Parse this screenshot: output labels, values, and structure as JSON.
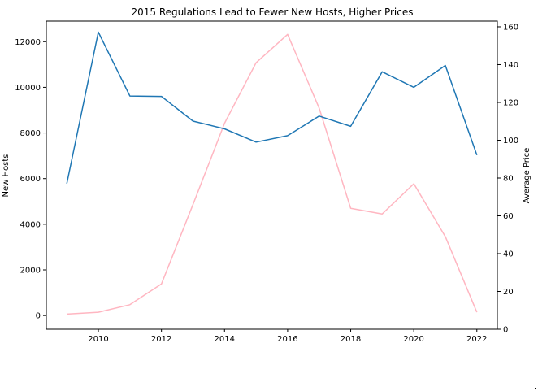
{
  "chart_data": {
    "type": "line",
    "title": "2015 Regulations Lead to Fewer New Hosts, Higher Prices",
    "x": [
      2009,
      2010,
      2011,
      2012,
      2013,
      2014,
      2015,
      2016,
      2017,
      2018,
      2019,
      2020,
      2021,
      2022
    ],
    "x_ticks": [
      "2010",
      "2012",
      "2014",
      "2016",
      "2018",
      "2020",
      "2022"
    ],
    "xlim": [
      2008.35,
      2022.65
    ],
    "left_axis": {
      "label": "New Hosts",
      "ylim": [
        -600,
        12900
      ],
      "ticks": [
        "0",
        "2000",
        "4000",
        "6000",
        "8000",
        "10000",
        "12000"
      ],
      "tick_values": [
        0,
        2000,
        4000,
        6000,
        8000,
        10000,
        12000
      ]
    },
    "right_axis": {
      "label": "Average Price",
      "ylim": [
        0,
        163
      ],
      "ticks": [
        "0",
        "20",
        "40",
        "60",
        "80",
        "100",
        "120",
        "140",
        "160"
      ],
      "tick_values": [
        0,
        20,
        40,
        60,
        80,
        100,
        120,
        140,
        160
      ]
    },
    "series": [
      {
        "axis": "left",
        "color": "#1f77b4",
        "values": [
          5780,
          12420,
          9620,
          9600,
          8520,
          8180,
          7600,
          7880,
          8740,
          8290,
          10680,
          10000,
          10960,
          7030
        ]
      },
      {
        "axis": "right",
        "color": "#ffb6c1",
        "values": [
          8,
          9,
          13,
          24,
          66,
          109,
          141,
          156,
          117,
          64,
          61,
          77,
          49,
          9
        ]
      }
    ],
    "grid": false,
    "legend": "none"
  }
}
